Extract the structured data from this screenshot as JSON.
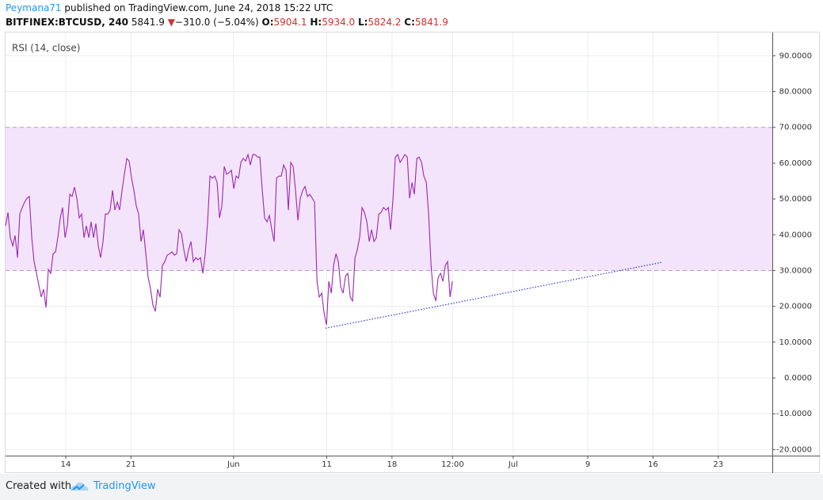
{
  "header": {
    "author": "Peymana71",
    "published": "published on TradingView.com, June 24, 2018 15:22 UTC",
    "symbol": "BITFINEX:BTCUSD, 240",
    "price": "5841.9",
    "arrow": "▼",
    "change": "−310.0 (−5.04%)",
    "open_label": "O:",
    "open": "5904.1",
    "high_label": "H:",
    "high": "5934.0",
    "low_label": "L:",
    "low": "5824.2",
    "close_label": "C:",
    "close": "5841.9"
  },
  "footer": {
    "created": "Created with",
    "brand": "TradingView"
  },
  "chart_data": {
    "type": "line",
    "legend": "RSI (14, close)",
    "x": [
      6.54,
      6.8,
      7.05,
      7.31,
      7.56,
      7.82,
      8.07,
      8.33,
      8.58,
      8.84,
      9.09,
      9.35,
      9.6,
      9.86,
      10.11,
      10.37,
      10.62,
      10.88,
      11.13,
      11.39,
      11.64,
      11.9,
      12.15,
      12.41,
      12.66,
      12.92,
      13.17,
      13.43,
      13.68,
      13.94,
      14.19,
      14.45,
      14.7,
      14.96,
      15.21,
      15.47,
      15.72,
      15.98,
      16.23,
      16.49,
      16.74,
      17.0,
      17.25,
      17.51,
      17.76,
      18.02,
      18.27,
      18.53,
      18.78,
      19.04,
      19.29,
      19.55,
      19.8,
      20.06,
      20.31,
      20.57,
      20.82,
      21.08,
      21.33,
      21.59,
      21.84,
      22.1,
      22.35,
      22.61,
      22.86,
      23.12,
      23.37,
      23.63,
      23.88,
      24.14,
      24.39,
      24.65,
      24.9,
      25.16,
      25.41,
      25.67,
      25.92,
      26.18,
      26.43,
      26.69,
      26.94,
      27.2,
      27.45,
      27.71,
      27.96,
      28.22,
      28.47,
      28.73,
      28.98,
      29.24,
      29.49,
      29.75,
      30.0,
      30.26,
      30.51,
      30.77,
      31.02,
      31.28,
      31.53,
      31.79,
      32.04,
      32.3,
      32.55,
      32.81,
      33.06,
      33.32,
      33.57,
      33.83,
      34.08,
      34.34,
      34.59,
      34.85,
      35.1,
      35.36,
      35.61,
      35.87,
      36.12,
      36.38,
      36.63,
      36.89,
      37.14,
      37.4,
      37.65,
      37.91,
      38.16,
      38.42,
      38.67,
      38.93,
      39.18,
      39.44,
      39.69,
      39.95,
      40.2,
      40.46,
      40.71,
      40.97,
      41.22,
      41.48,
      41.73,
      41.99,
      42.24,
      42.5,
      42.75,
      43.01,
      43.26,
      43.52,
      43.77,
      44.03,
      44.28,
      44.54,
      44.79,
      45.05,
      45.3,
      45.56,
      45.81,
      46.07,
      46.32,
      46.58,
      46.83,
      47.09,
      47.34,
      47.6,
      47.85,
      48.11,
      48.36,
      48.62,
      48.87,
      49.13,
      49.38,
      49.64,
      49.89,
      50.15,
      50.4,
      50.66,
      50.91,
      51.17,
      51.42,
      51.68,
      51.93,
      52.19,
      52.44,
      52.7,
      52.95,
      53.21,
      53.46,
      53.72,
      53.97,
      54.23,
      54.48
    ],
    "series": [
      {
        "name": "RSI (14, close)",
        "color": "#9c27b0",
        "values": [
          42.5,
          46.2,
          39.2,
          36.9,
          39.8,
          33.6,
          45.8,
          47.6,
          49.1,
          50.2,
          50.7,
          39.2,
          32.5,
          29.2,
          25.9,
          22.6,
          24.8,
          19.7,
          30.3,
          29.2,
          34.7,
          35.2,
          39.2,
          44.7,
          47.6,
          39.2,
          42.5,
          51.3,
          50.7,
          53.3,
          50.2,
          44.7,
          45.8,
          39.2,
          42.5,
          39.2,
          43.6,
          39.2,
          43.1,
          36.9,
          33.6,
          38.1,
          45.8,
          45.8,
          46.9,
          52.4,
          46.9,
          49.1,
          46.9,
          52.4,
          56.9,
          61.3,
          60.6,
          55.8,
          52.4,
          48.0,
          45.8,
          38.1,
          41.4,
          34.7,
          28.1,
          24.8,
          20.4,
          18.6,
          24.8,
          22.6,
          31.4,
          32.5,
          34.3,
          34.7,
          35.2,
          34.3,
          34.7,
          41.4,
          40.3,
          35.8,
          32.5,
          35.8,
          38.1,
          32.5,
          33.6,
          33.0,
          33.6,
          29.2,
          34.7,
          43.6,
          56.4,
          55.8,
          56.4,
          54.6,
          44.7,
          48.0,
          59.1,
          56.9,
          57.3,
          58.0,
          52.9,
          56.4,
          55.8,
          60.2,
          61.3,
          60.6,
          62.4,
          59.5,
          62.4,
          62.4,
          61.7,
          61.7,
          52.4,
          44.7,
          43.6,
          45.4,
          41.4,
          38.1,
          55.8,
          56.4,
          56.4,
          59.5,
          58.0,
          46.9,
          60.2,
          59.1,
          52.4,
          44.0,
          50.2,
          52.4,
          53.5,
          50.7,
          51.3,
          50.2,
          49.1,
          27.0,
          22.6,
          23.7,
          18.1,
          14.8,
          27.0,
          23.7,
          31.4,
          34.7,
          32.5,
          25.4,
          23.7,
          28.5,
          29.2,
          22.6,
          21.5,
          33.6,
          35.8,
          39.6,
          47.6,
          46.2,
          43.6,
          38.1,
          41.4,
          38.1,
          39.2,
          45.8,
          46.2,
          47.6,
          46.9,
          47.6,
          41.4,
          50.2,
          61.7,
          62.4,
          60.2,
          61.3,
          62.4,
          61.7,
          50.2,
          54.6,
          51.3,
          61.3,
          61.7,
          60.2,
          56.4,
          54.6,
          45.8,
          31.4,
          23.7,
          21.5,
          28.1,
          29.2,
          27.0,
          31.4,
          32.5,
          22.6,
          27.0
        ]
      }
    ],
    "trendline": {
      "x": [
        40.87,
        76.97
      ],
      "values": [
        13.9,
        32.3
      ],
      "color": "#2a3bd0"
    },
    "band": {
      "range": [
        30,
        70
      ],
      "color": "#f3e4fb"
    },
    "xlim": [
      6.54,
      88.8
    ],
    "ylim": [
      -21.7,
      96.5
    ],
    "xticks": [
      {
        "value": 13,
        "label": "14"
      },
      {
        "value": 20,
        "label": "21"
      },
      {
        "value": 31,
        "label": "Jun"
      },
      {
        "value": 41,
        "label": "11"
      },
      {
        "value": 48,
        "label": "18"
      },
      {
        "value": 54.5,
        "label": "12:00"
      },
      {
        "value": 61,
        "label": "Jul"
      },
      {
        "value": 69,
        "label": "9"
      },
      {
        "value": 76,
        "label": "16"
      },
      {
        "value": 83,
        "label": "23"
      }
    ],
    "yticks": [
      {
        "value": 90,
        "label": "90.0000"
      },
      {
        "value": 80,
        "label": "80.0000"
      },
      {
        "value": 70,
        "label": "70.0000"
      },
      {
        "value": 60,
        "label": "60.0000"
      },
      {
        "value": 50,
        "label": "50.0000"
      },
      {
        "value": 40,
        "label": "40.0000"
      },
      {
        "value": 30,
        "label": "30.0000"
      },
      {
        "value": 20,
        "label": "20.0000"
      },
      {
        "value": 10,
        "label": "10.0000"
      },
      {
        "value": 0,
        "label": "0.0000"
      },
      {
        "value": -10,
        "label": "-10.0000"
      },
      {
        "value": -20,
        "label": "-20.0000"
      }
    ],
    "grid": true
  }
}
